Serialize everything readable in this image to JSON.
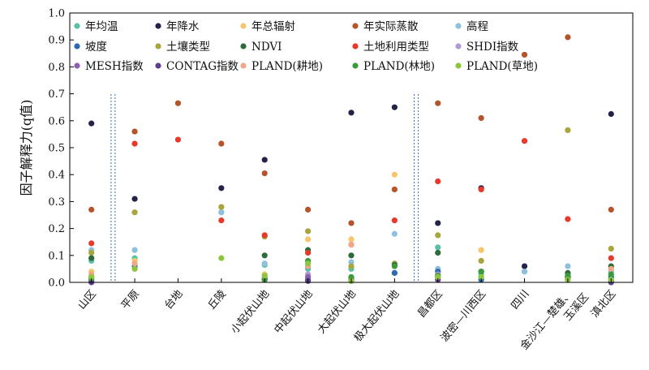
{
  "chart_data": {
    "type": "scatter",
    "ylabel": "因子解释力(q值)",
    "ylim": [
      0.0,
      1.0
    ],
    "yticks": [
      "0.0",
      "0.1",
      "0.2",
      "0.3",
      "0.4",
      "0.5",
      "0.6",
      "0.7",
      "0.8",
      "0.9",
      "1.0"
    ],
    "categories": [
      "山区",
      "平原",
      "台地",
      "丘陵",
      "小起伏山地",
      "中起伏山地",
      "大起伏山地",
      "极大起伏山地",
      "昌都区",
      "波密—川西区",
      "四川",
      "金沙江—楚雄、玉溪区",
      "滇北区"
    ],
    "separators_after_category_index": [
      0,
      7
    ],
    "legend_position": "top-left, inside",
    "series": [
      {
        "name": "年均温",
        "color": "#5cc0a8",
        "values": [
          0.08,
          0.09,
          null,
          0.26,
          0.065,
          0.05,
          0.05,
          0.035,
          0.13,
          0.03,
          0.04,
          0.02,
          0.02
        ]
      },
      {
        "name": "年降水",
        "color": "#23234a",
        "values": [
          0.59,
          0.31,
          null,
          0.35,
          0.455,
          0.06,
          0.63,
          0.65,
          0.22,
          0.35,
          0.06,
          0.02,
          0.625
        ]
      },
      {
        "name": "年总辐射",
        "color": "#f5c76a",
        "values": [
          0.04,
          0.08,
          null,
          0.28,
          0.03,
          0.16,
          0.16,
          0.4,
          0.05,
          0.12,
          null,
          0.03,
          0.04
        ]
      },
      {
        "name": "年实际蒸散",
        "color": "#b5532a",
        "values": [
          0.27,
          0.56,
          0.665,
          0.515,
          0.405,
          0.27,
          0.22,
          0.345,
          0.665,
          0.61,
          0.845,
          0.91,
          0.27
        ]
      },
      {
        "name": "高程",
        "color": "#8ec1de",
        "values": [
          0.12,
          0.12,
          null,
          0.26,
          0.07,
          0.02,
          0.075,
          0.18,
          0.05,
          0.02,
          0.04,
          0.06,
          0.04
        ]
      },
      {
        "name": "坡度",
        "color": "#2b6ab0",
        "values": [
          0.02,
          0.06,
          null,
          null,
          0.01,
          0.01,
          0.015,
          0.035,
          0.04,
          0.01,
          null,
          0.01,
          0.02
        ]
      },
      {
        "name": "土壤类型",
        "color": "#a7a53c",
        "values": [
          0.11,
          0.26,
          null,
          0.28,
          0.17,
          0.19,
          0.06,
          0.07,
          0.175,
          0.08,
          null,
          0.565,
          0.125
        ]
      },
      {
        "name": "NDVI",
        "color": "#2e6b3a",
        "values": [
          0.09,
          null,
          null,
          null,
          0.1,
          0.12,
          0.1,
          0.065,
          0.11,
          0.04,
          null,
          0.035,
          0.06
        ]
      },
      {
        "name": "土地利用类型",
        "color": "#e8392b",
        "values": [
          0.145,
          0.515,
          0.53,
          0.23,
          0.175,
          0.11,
          0.14,
          0.23,
          0.375,
          0.345,
          0.525,
          0.235,
          0.09
        ]
      },
      {
        "name": "SHDI指数",
        "color": "#b49ad2",
        "values": [
          0.01,
          null,
          null,
          null,
          0.02,
          0.03,
          0.01,
          null,
          0.03,
          null,
          null,
          null,
          0.01
        ]
      },
      {
        "name": "MESH指数",
        "color": "#8a61b0",
        "values": [
          0.005,
          null,
          null,
          null,
          0.015,
          0.02,
          0.01,
          null,
          0.02,
          null,
          null,
          null,
          0.005
        ]
      },
      {
        "name": "CONTAG指数",
        "color": "#5d3f8e",
        "values": [
          0.0,
          null,
          null,
          null,
          0.01,
          0.005,
          0.005,
          null,
          0.01,
          null,
          null,
          null,
          0.0
        ]
      },
      {
        "name": "PLAND(耕地)",
        "color": "#f0a78a",
        "values": [
          0.03,
          0.07,
          null,
          null,
          0.02,
          0.06,
          0.14,
          null,
          0.02,
          null,
          null,
          null,
          0.05
        ]
      },
      {
        "name": "PLAND(林地)",
        "color": "#3b9a3b",
        "values": [
          0.015,
          null,
          null,
          null,
          0.01,
          0.08,
          0.02,
          0.06,
          0.025,
          0.04,
          null,
          0.025,
          0.03
        ]
      },
      {
        "name": "PLAND(草地)",
        "color": "#8cc63f",
        "values": [
          0.02,
          0.05,
          null,
          0.09,
          0.025,
          0.07,
          0.005,
          null,
          0.02,
          0.02,
          null,
          0.01,
          0.01
        ]
      }
    ]
  }
}
